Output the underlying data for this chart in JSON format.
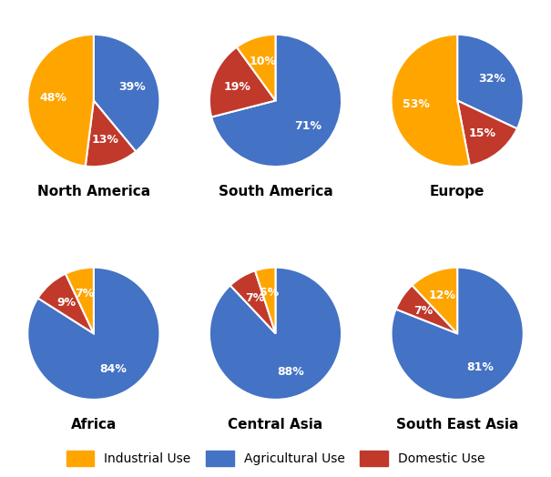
{
  "regions": [
    "North America",
    "South America",
    "Europe",
    "Africa",
    "Central Asia",
    "South East Asia"
  ],
  "data": {
    "North America": {
      "Agricultural": 39,
      "Domestic": 13,
      "Industrial": 48
    },
    "South America": {
      "Agricultural": 71,
      "Domestic": 19,
      "Industrial": 10
    },
    "Europe": {
      "Agricultural": 32,
      "Domestic": 15,
      "Industrial": 53
    },
    "Africa": {
      "Agricultural": 84,
      "Domestic": 9,
      "Industrial": 7
    },
    "Central Asia": {
      "Agricultural": 88,
      "Domestic": 7,
      "Industrial": 5
    },
    "South East Asia": {
      "Agricultural": 81,
      "Domestic": 7,
      "Industrial": 12
    }
  },
  "slice_orders": {
    "North America": [
      "Agricultural",
      "Domestic",
      "Industrial"
    ],
    "South America": [
      "Agricultural",
      "Domestic",
      "Industrial"
    ],
    "Europe": [
      "Agricultural",
      "Domestic",
      "Industrial"
    ],
    "Africa": [
      "Agricultural",
      "Domestic",
      "Industrial"
    ],
    "Central Asia": [
      "Agricultural",
      "Domestic",
      "Industrial"
    ],
    "South East Asia": [
      "Agricultural",
      "Domestic",
      "Industrial"
    ]
  },
  "startangles": {
    "North America": 90,
    "South America": 90,
    "Europe": 90,
    "Africa": 90,
    "Central Asia": 90,
    "South East Asia": 90
  },
  "colors": {
    "Industrial": "#FFA500",
    "Agricultural": "#4472C4",
    "Domestic": "#C0392B"
  },
  "legend_labels": [
    "Industrial Use",
    "Agricultural Use",
    "Domestic Use"
  ],
  "legend_keys": [
    "Industrial",
    "Agricultural",
    "Domestic"
  ],
  "title_fontsize": 11,
  "label_fontsize": 9,
  "legend_fontsize": 10,
  "background_color": "#FFFFFF"
}
